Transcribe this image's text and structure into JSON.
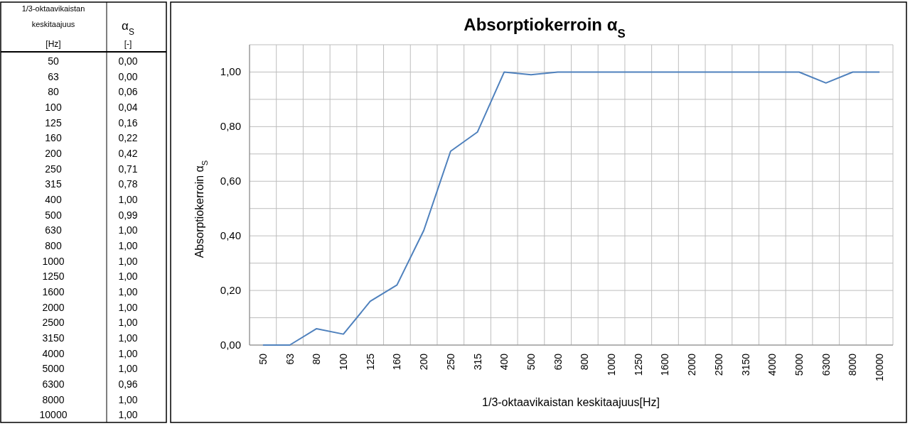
{
  "chart_data": {
    "type": "line",
    "title": "Absorptiokerroin α$_{S}$",
    "xlabel": "1/3-oktaavikaistan  keskitaajuus[Hz]",
    "ylabel": "Absorptiokerroin α$_{S}$",
    "annotations": [
      "1/3-oktaavikaistan",
      "keskitaajuus",
      "[Hz]",
      "α$_{S}$",
      "[-]"
    ],
    "categories": [
      "50",
      "63",
      "80",
      "100",
      "125",
      "160",
      "200",
      "250",
      "315",
      "400",
      "500",
      "630",
      "800",
      "1000",
      "1250",
      "1600",
      "2000",
      "2500",
      "3150",
      "4000",
      "5000",
      "6300",
      "8000",
      "10000"
    ],
    "series": [
      {
        "color": "#4f81bd",
        "values": [
          0,
          0,
          0.06,
          0.04,
          0.16,
          0.22,
          0.42,
          0.71,
          0.78,
          1,
          0.99,
          1,
          1,
          1,
          1,
          1,
          1,
          1,
          1,
          1,
          1,
          0.96,
          1,
          1
        ]
      }
    ],
    "value_labels": [
      "0,00",
      "0,00",
      "0,06",
      "0,04",
      "0,16",
      "0,22",
      "0,42",
      "0,71",
      "0,78",
      "1,00",
      "0,99",
      "1,00",
      "1,00",
      "1,00",
      "1,00",
      "1,00",
      "1,00",
      "1,00",
      "1,00",
      "1,00",
      "1,00",
      "0,96",
      "1,00",
      "1,00"
    ],
    "ylim": [
      0,
      1.1
    ],
    "yticks": [
      {
        "value": 0,
        "label": "0,00"
      },
      {
        "value": 0.1,
        "label": null
      },
      {
        "value": 0.2,
        "label": "0,20"
      },
      {
        "value": 0.3,
        "label": null
      },
      {
        "value": 0.4,
        "label": "0,40"
      },
      {
        "value": 0.5,
        "label": null
      },
      {
        "value": 0.6,
        "label": "0,60"
      },
      {
        "value": 0.7,
        "label": null
      },
      {
        "value": 0.8,
        "label": "0,80"
      },
      {
        "value": 0.9,
        "label": null
      },
      {
        "value": 1,
        "label": "1,00"
      },
      {
        "value": 1.1,
        "label": null
      }
    ],
    "grid": true,
    "marker": "none",
    "line_style": "solid"
  }
}
